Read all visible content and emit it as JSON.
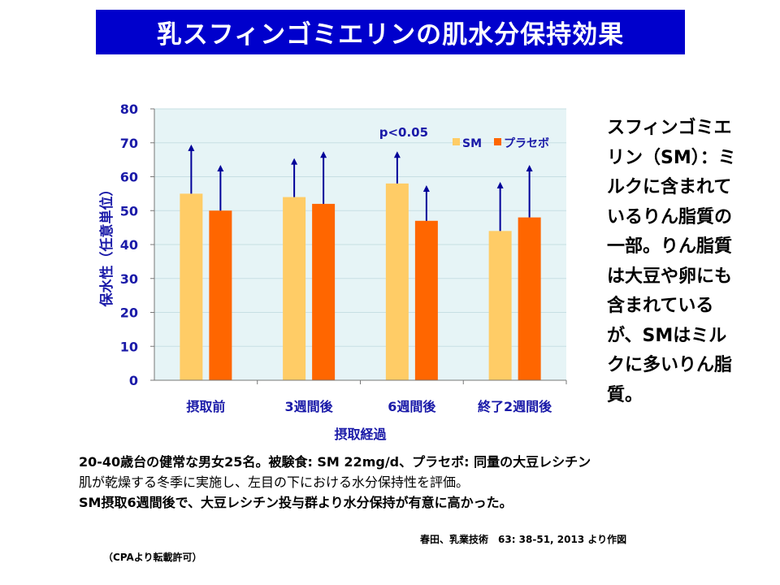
{
  "page": {
    "title": "乳スフィンゴミエリンの肌水分保持効果"
  },
  "chart_data": {
    "type": "bar",
    "categories": [
      "摂取前",
      "3週間後",
      "6週間後",
      "終了2週間後"
    ],
    "series": [
      {
        "name": "SM",
        "color": "#ffcc66",
        "values": [
          55,
          54,
          58,
          44
        ],
        "error_upper": [
          69,
          65,
          67,
          58
        ]
      },
      {
        "name": "プラセボ",
        "color": "#ff6600",
        "values": [
          50,
          52,
          47,
          48
        ],
        "error_upper": [
          63,
          67,
          57,
          63
        ]
      }
    ],
    "ylim": [
      0,
      80
    ],
    "yticks": [
      0,
      10,
      20,
      30,
      40,
      50,
      60,
      70,
      80
    ],
    "ylabel": "保水性（任意単位）",
    "xlabel": "摂取経過",
    "annotation": "p<0.05",
    "annotation_category": "6週間後",
    "legend_position": "top-right",
    "colors": {
      "plot_bg": "#e6f4f6",
      "axis_text": "#1a1aa8",
      "error_bar": "#000099"
    }
  },
  "side_note": "スフィンゴミエリン（SM）：ミルクに含まれているりん脂質の一部。りん脂質は大豆や卵にも含まれているが、SMはミルクに多いりん脂質。",
  "description": {
    "line1": "20-40歳台の健常な男女25名。被験食: SM 22mg/d、プラセボ: 同量の大豆レシチン",
    "line2": "肌が乾燥する冬季に実施し、左目の下における水分保持性を評価。",
    "line3": "SM摂取6週間後で、大豆レシチン投与群より水分保持が有意に高かった。"
  },
  "citation": "春田、乳業技術　63: 38-51, 2013 より作図",
  "permission": "（CPAより転載許可）"
}
